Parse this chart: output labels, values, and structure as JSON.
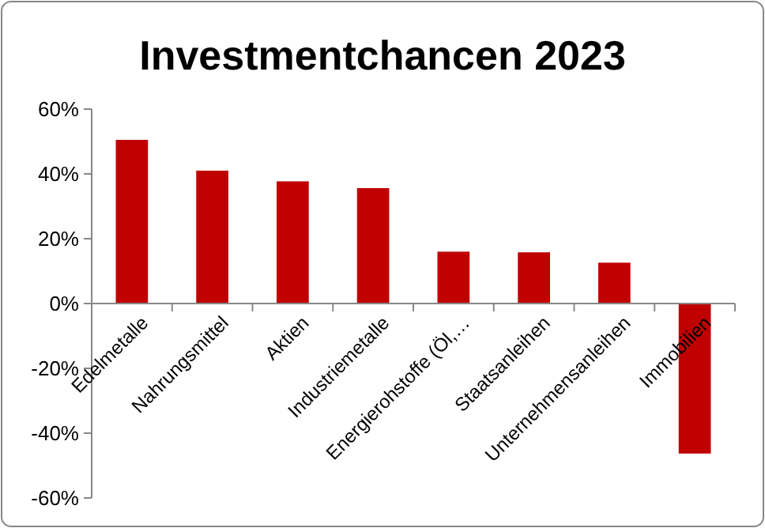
{
  "chart_data": {
    "type": "bar",
    "title": "Investmentchancen 2023",
    "categories": [
      "Edelmetalle",
      "Nahrungsmittel",
      "Aktien",
      "Industriemetalle",
      "Energierohstoffe (Öl,…",
      "Staatsanleihen",
      "Unternehmensanleihen",
      "Immobilien"
    ],
    "values": [
      50.5,
      41,
      37.7,
      35.6,
      16,
      15.8,
      12.6,
      -46.3
    ],
    "color": "#c00000",
    "ylim": [
      -60,
      60
    ],
    "yticks": [
      {
        "value": -60,
        "label": "-60%"
      },
      {
        "value": -40,
        "label": "-40%"
      },
      {
        "value": -20,
        "label": "-20%"
      },
      {
        "value": 0,
        "label": "0%"
      },
      {
        "value": 20,
        "label": "20%"
      },
      {
        "value": 40,
        "label": "40%"
      },
      {
        "value": 60,
        "label": "60%"
      }
    ],
    "grid": false
  }
}
